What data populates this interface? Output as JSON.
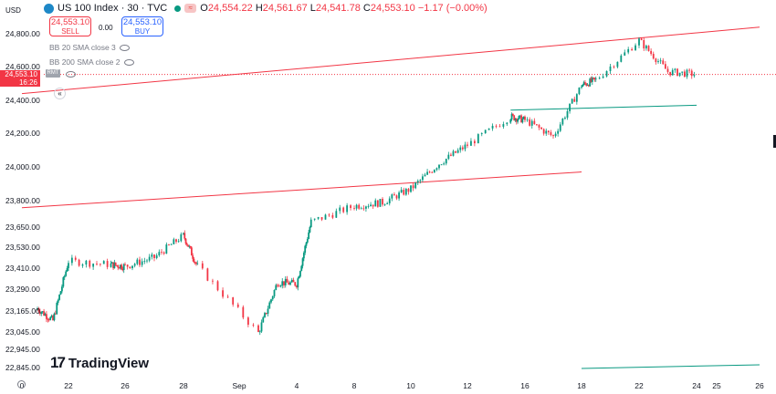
{
  "header": {
    "currency": "USD",
    "symbol_title": "US 100 Index · 30 · TVC",
    "ohlc": {
      "o_label": "O",
      "o": "24,554.22",
      "h_label": "H",
      "h": "24,561.67",
      "l_label": "L",
      "l": "24,541.78",
      "c_label": "C",
      "c": "24,553.10",
      "change": "−1.17 (−0.00%)"
    },
    "sell_price": "24,553.10",
    "sell_label": "SELL",
    "spread": "0.00",
    "buy_price": "24,553.10",
    "buy_label": "BUY",
    "indicators": [
      "BB 20 SMA close 3",
      "BB 200 SMA close 2"
    ]
  },
  "price_flag": {
    "price": "24,553.10",
    "countdown": "16:26",
    "inline_label": "RMT",
    "chevron": "«"
  },
  "branding": {
    "logo_text": "TradingView",
    "logo_mark": "17"
  },
  "colors": {
    "up": "#089981",
    "down": "#f23645",
    "trend_red": "#f23645",
    "trend_green": "#089981",
    "last_price_line": "#f23645"
  },
  "chart_data": {
    "type": "candlestick",
    "title": "US 100 Index · 30 · TVC",
    "y_ticks": [
      24800,
      24600,
      24400,
      24200,
      24000,
      23800,
      23650,
      23530,
      23410,
      23290,
      23165,
      23045,
      22945,
      22845
    ],
    "y_tick_labels": [
      "24,800.00",
      "24,600.00",
      "24,400.00",
      "24,200.00",
      "24,000.00",
      "23,800.00",
      "23,650.00",
      "23,530.00",
      "23,410.00",
      "23,290.00",
      "23,165.00",
      "23,045.00",
      "22,945.00",
      "22,845.00"
    ],
    "x_ticks": [
      {
        "label": "22",
        "date": "2025-08-22"
      },
      {
        "label": "26",
        "date": "2025-08-26"
      },
      {
        "label": "28",
        "date": "2025-08-28"
      },
      {
        "label": "Sep",
        "date": "2025-09-01"
      },
      {
        "label": "4",
        "date": "2025-09-04"
      },
      {
        "label": "8",
        "date": "2025-09-08"
      },
      {
        "label": "10",
        "date": "2025-09-10"
      },
      {
        "label": "12",
        "date": "2025-09-12"
      },
      {
        "label": "16",
        "date": "2025-09-16"
      },
      {
        "label": "18",
        "date": "2025-09-18"
      },
      {
        "label": "22",
        "date": "2025-09-22"
      },
      {
        "label": "24",
        "date": "2025-09-24"
      },
      {
        "label": "25",
        "date": "2025-09-25"
      },
      {
        "label": "26",
        "date": "2025-09-26"
      }
    ],
    "x_axis_start_label": "0",
    "last_price": 24553.1,
    "price_path": [
      {
        "date": "2025-08-20",
        "close": 23180
      },
      {
        "date": "2025-08-21",
        "close": 23110
      },
      {
        "date": "2025-08-22",
        "close": 23450
      },
      {
        "date": "2025-08-25",
        "close": 23430
      },
      {
        "date": "2025-08-26",
        "close": 23420
      },
      {
        "date": "2025-08-27",
        "close": 23470
      },
      {
        "date": "2025-08-28",
        "close": 23600
      },
      {
        "date": "2025-08-29",
        "close": 23420
      },
      {
        "date": "2025-09-02",
        "close": 23040
      },
      {
        "date": "2025-09-03",
        "close": 23330
      },
      {
        "date": "2025-09-04",
        "close": 23320
      },
      {
        "date": "2025-09-05",
        "close": 23680
      },
      {
        "date": "2025-09-08",
        "close": 23770
      },
      {
        "date": "2025-09-09",
        "close": 23790
      },
      {
        "date": "2025-09-10",
        "close": 23870
      },
      {
        "date": "2025-09-11",
        "close": 24020
      },
      {
        "date": "2025-09-12",
        "close": 24130
      },
      {
        "date": "2025-09-15",
        "close": 24300
      },
      {
        "date": "2025-09-16",
        "close": 24280
      },
      {
        "date": "2025-09-17",
        "close": 24180
      },
      {
        "date": "2025-09-18",
        "close": 24490
      },
      {
        "date": "2025-09-19",
        "close": 24520
      },
      {
        "date": "2025-09-22",
        "close": 24760
      },
      {
        "date": "2025-09-23",
        "close": 24570
      },
      {
        "date": "2025-09-24",
        "close": 24553
      }
    ],
    "trend_lines": [
      {
        "color": "red",
        "from": {
          "date": "2025-08-19",
          "price": 24440
        },
        "to": {
          "date": "2025-09-26",
          "price": 24840
        }
      },
      {
        "color": "red",
        "from": {
          "date": "2025-08-19",
          "price": 23760
        },
        "to": {
          "date": "2025-09-18",
          "price": 23970
        }
      },
      {
        "color": "green",
        "from": {
          "date": "2025-09-15",
          "price": 24340
        },
        "to": {
          "date": "2025-09-24",
          "price": 24370
        }
      },
      {
        "color": "green",
        "from": {
          "date": "2025-09-18",
          "price": 22840
        },
        "to": {
          "date": "2025-09-26",
          "price": 22860
        }
      }
    ],
    "grid": false,
    "legend": "top-left"
  }
}
